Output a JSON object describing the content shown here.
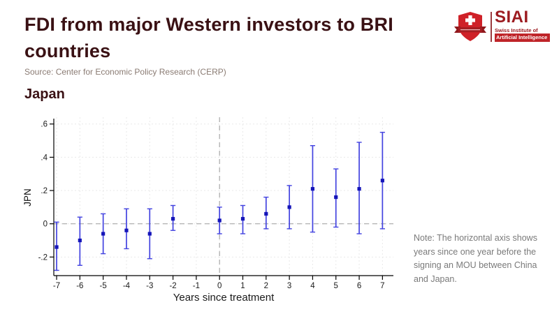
{
  "header": {
    "title": "FDI from major Western investors to BRI countries",
    "source": "Source: Center for Economic Policy Research (CERP)",
    "title_color": "#3a1114",
    "source_color": "#8a7b73"
  },
  "logo": {
    "acronym": "SIAI",
    "org_line1": "Swiss Institute of",
    "org_line2": "Artificial Intelligence",
    "brand_color": "#9c1b20"
  },
  "section": {
    "subtitle": "Japan"
  },
  "note": {
    "text": "Note: The horizontal axis shows years since one year before the signing an MOU between China and Japan."
  },
  "chart_data": {
    "type": "scatter",
    "subtype": "event-study-errorbar",
    "title": "Japan",
    "xlabel": "Years since treatment",
    "ylabel": "JPN",
    "xlim": [
      -7.7,
      7.7
    ],
    "ylim": [
      -0.32,
      0.63
    ],
    "x_ticks": [
      -7,
      -6,
      -5,
      -4,
      -3,
      -2,
      -1,
      0,
      1,
      2,
      3,
      4,
      5,
      6,
      7
    ],
    "y_ticks": [
      {
        "label": ".6",
        "value": 0.6
      },
      {
        "label": ".4",
        "value": 0.4
      },
      {
        "label": ".2",
        "value": 0.2
      },
      {
        "label": "0",
        "value": 0.0
      },
      {
        "label": "-.2",
        "value": -0.2
      }
    ],
    "grid": "dashed",
    "legend": "none",
    "reference_line_h": 0,
    "reference_line_v": 0,
    "series": [
      {
        "name": "JPN",
        "marker_color": "#1515b8",
        "errorbar_color": "#4343e0",
        "points": [
          {
            "x": -7,
            "est": -0.14,
            "lo": -0.28,
            "hi": 0.01
          },
          {
            "x": -6,
            "est": -0.1,
            "lo": -0.25,
            "hi": 0.04
          },
          {
            "x": -5,
            "est": -0.06,
            "lo": -0.18,
            "hi": 0.06
          },
          {
            "x": -4,
            "est": -0.04,
            "lo": -0.15,
            "hi": 0.09
          },
          {
            "x": -3,
            "est": -0.06,
            "lo": -0.21,
            "hi": 0.09
          },
          {
            "x": -2,
            "est": 0.03,
            "lo": -0.04,
            "hi": 0.11
          },
          {
            "x": 0,
            "est": 0.02,
            "lo": -0.06,
            "hi": 0.1
          },
          {
            "x": 1,
            "est": 0.03,
            "lo": -0.06,
            "hi": 0.11
          },
          {
            "x": 2,
            "est": 0.06,
            "lo": -0.03,
            "hi": 0.16
          },
          {
            "x": 3,
            "est": 0.1,
            "lo": -0.03,
            "hi": 0.23
          },
          {
            "x": 4,
            "est": 0.21,
            "lo": -0.05,
            "hi": 0.47
          },
          {
            "x": 5,
            "est": 0.16,
            "lo": -0.02,
            "hi": 0.33
          },
          {
            "x": 6,
            "est": 0.21,
            "lo": -0.06,
            "hi": 0.49
          },
          {
            "x": 7,
            "est": 0.26,
            "lo": -0.03,
            "hi": 0.55
          }
        ]
      }
    ],
    "colors": {
      "grid": "#e9e9e9",
      "reference": "#a8a8a8",
      "axis": "#000000"
    }
  }
}
